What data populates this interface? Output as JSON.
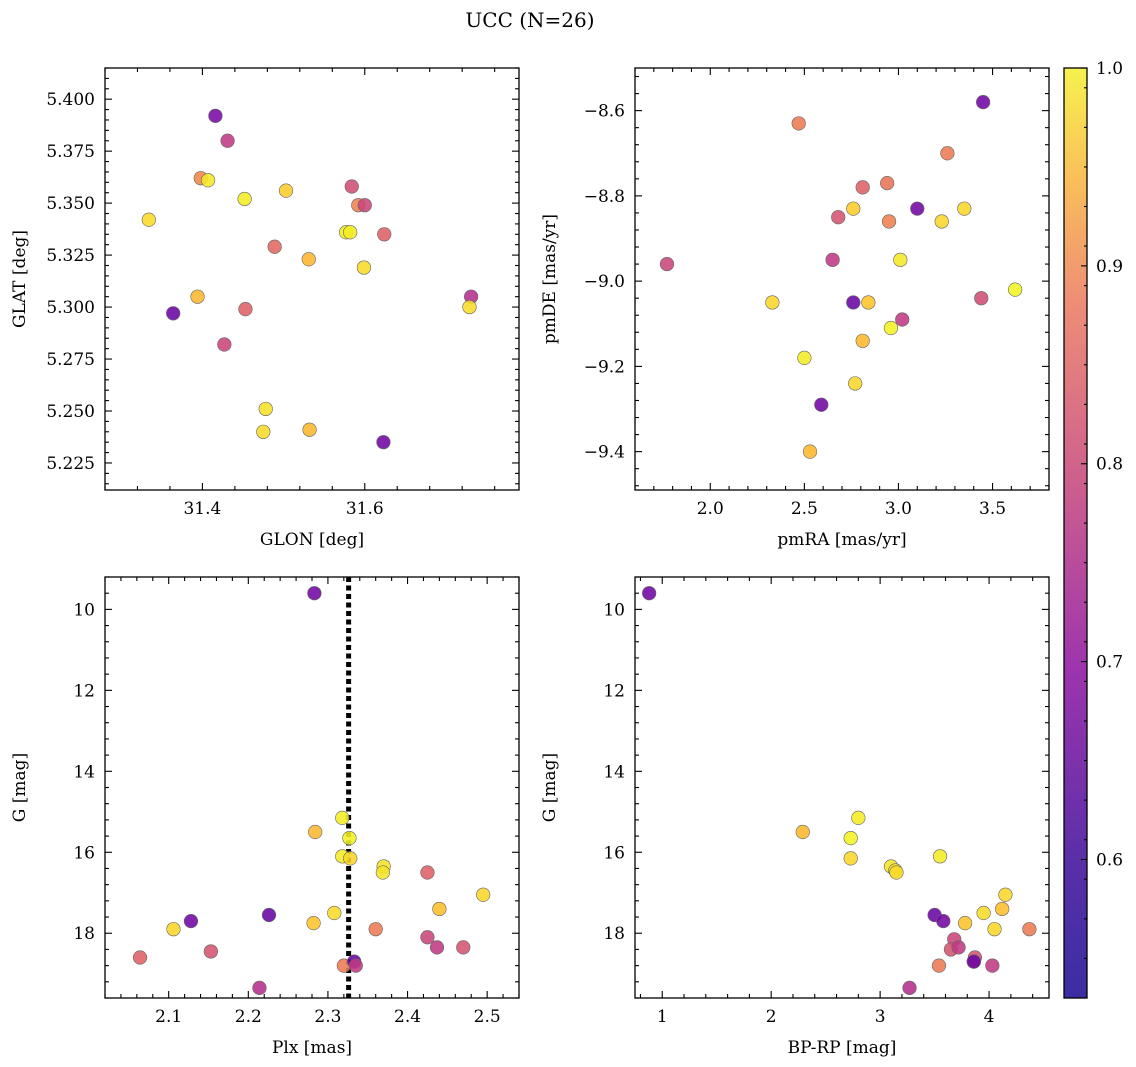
{
  "title": "UCC (N=26)",
  "chart_data": [
    {
      "type": "scatter",
      "id": "pos",
      "xlabel": "GLON [deg]",
      "ylabel": "GLAT [deg]",
      "xlim": [
        31.28,
        31.79
      ],
      "ylim": [
        5.212,
        5.415
      ],
      "xticks": [
        31.4,
        31.6
      ],
      "xtick_labels": [
        "31.4",
        "31.6"
      ],
      "yticks": [
        5.225,
        5.25,
        5.275,
        5.3,
        5.325,
        5.35,
        5.375,
        5.4
      ],
      "ytick_labels": [
        "5.225",
        "5.250",
        "5.275",
        "5.300",
        "5.325",
        "5.350",
        "5.375",
        "5.400"
      ],
      "x": [
        31.416,
        31.431,
        31.398,
        31.407,
        31.334,
        31.452,
        31.503,
        31.584,
        31.577,
        31.592,
        31.6,
        31.582,
        31.624,
        31.489,
        31.531,
        31.599,
        31.731,
        31.729,
        31.394,
        31.453,
        31.364,
        31.427,
        31.478,
        31.475,
        31.532,
        31.623
      ],
      "y": [
        5.392,
        5.38,
        5.362,
        5.361,
        5.342,
        5.352,
        5.356,
        5.358,
        5.336,
        5.349,
        5.349,
        5.336,
        5.335,
        5.329,
        5.323,
        5.319,
        5.305,
        5.3,
        5.305,
        5.299,
        5.297,
        5.282,
        5.251,
        5.24,
        5.241,
        5.235
      ],
      "prob": [
        0.58,
        0.68,
        0.8,
        0.96,
        0.93,
        0.97,
        0.9,
        0.71,
        0.97,
        0.79,
        0.7,
        0.97,
        0.74,
        0.75,
        0.86,
        0.93,
        0.66,
        0.93,
        0.86,
        0.74,
        0.56,
        0.7,
        0.94,
        0.93,
        0.86,
        0.57
      ]
    },
    {
      "type": "scatter",
      "id": "pm",
      "xlabel": "pmRA [mas/yr]",
      "ylabel": "pmDE [mas/yr]",
      "xlim": [
        1.6,
        3.8
      ],
      "ylim": [
        -9.49,
        -8.5
      ],
      "xticks": [
        2.0,
        2.5,
        3.0,
        3.5
      ],
      "xtick_labels": [
        "2.0",
        "2.5",
        "3.0",
        "3.5"
      ],
      "yticks": [
        -9.4,
        -9.2,
        -9.0,
        -8.8,
        -8.6
      ],
      "ytick_labels": [
        "−9.4",
        "−9.2",
        "−9.0",
        "−8.8",
        "−8.6"
      ],
      "x": [
        3.45,
        2.47,
        3.26,
        2.94,
        2.81,
        3.35,
        2.76,
        2.68,
        3.1,
        2.95,
        3.23,
        1.77,
        2.65,
        3.01,
        3.62,
        2.33,
        2.76,
        2.84,
        3.44,
        3.02,
        2.96,
        2.81,
        2.5,
        2.77,
        2.59,
        2.53
      ],
      "y": [
        -8.58,
        -8.63,
        -8.7,
        -8.77,
        -8.78,
        -8.83,
        -8.83,
        -8.85,
        -8.83,
        -8.86,
        -8.86,
        -8.96,
        -8.95,
        -8.95,
        -9.02,
        -9.05,
        -9.05,
        -9.05,
        -9.04,
        -9.09,
        -9.11,
        -9.14,
        -9.18,
        -9.24,
        -9.29,
        -9.4
      ],
      "prob": [
        0.57,
        0.78,
        0.78,
        0.77,
        0.74,
        0.92,
        0.9,
        0.72,
        0.57,
        0.79,
        0.92,
        0.7,
        0.68,
        0.96,
        0.99,
        0.92,
        0.56,
        0.88,
        0.71,
        0.68,
        0.98,
        0.86,
        0.97,
        0.92,
        0.57,
        0.86
      ]
    },
    {
      "type": "scatter",
      "id": "plx",
      "xlabel": "Plx [mas]",
      "ylabel": "G [mag]",
      "xlim": [
        2.02,
        2.54
      ],
      "ylim": [
        19.6,
        9.2
      ],
      "xticks": [
        2.1,
        2.2,
        2.3,
        2.4,
        2.5
      ],
      "xtick_labels": [
        "2.1",
        "2.2",
        "2.3",
        "2.4",
        "2.5"
      ],
      "yticks": [
        10,
        12,
        14,
        16,
        18
      ],
      "ytick_labels": [
        "10",
        "12",
        "14",
        "16",
        "18"
      ],
      "vline": 2.326,
      "x": [
        2.283,
        2.284,
        2.318,
        2.327,
        2.318,
        2.328,
        2.37,
        2.369,
        2.425,
        2.44,
        2.495,
        2.308,
        2.282,
        2.226,
        2.128,
        2.106,
        2.153,
        2.36,
        2.425,
        2.437,
        2.47,
        2.064,
        2.32,
        2.333,
        2.335,
        2.214
      ],
      "y": [
        9.6,
        15.5,
        15.15,
        15.65,
        16.1,
        16.15,
        16.35,
        16.5,
        16.5,
        17.4,
        17.05,
        17.5,
        17.75,
        17.55,
        17.7,
        17.9,
        18.45,
        17.9,
        18.1,
        18.35,
        18.35,
        18.6,
        18.8,
        18.7,
        18.8,
        19.35
      ],
      "prob": [
        0.57,
        0.86,
        0.97,
        0.98,
        0.97,
        0.92,
        0.95,
        0.95,
        0.74,
        0.87,
        0.92,
        0.93,
        0.88,
        0.56,
        0.57,
        0.92,
        0.72,
        0.78,
        0.7,
        0.68,
        0.72,
        0.74,
        0.78,
        0.56,
        0.68,
        0.66
      ]
    },
    {
      "type": "scatter",
      "id": "cmd",
      "xlabel": "BP-RP [mag]",
      "ylabel": "G [mag]",
      "xlim": [
        0.75,
        4.55
      ],
      "ylim": [
        19.6,
        9.2
      ],
      "xticks": [
        1,
        2,
        3,
        4
      ],
      "xtick_labels": [
        "1",
        "2",
        "3",
        "4"
      ],
      "yticks": [
        10,
        12,
        14,
        16,
        18
      ],
      "ytick_labels": [
        "10",
        "12",
        "14",
        "16",
        "18"
      ],
      "x": [
        0.88,
        2.29,
        2.8,
        2.73,
        2.73,
        3.55,
        3.1,
        3.14,
        3.15,
        4.15,
        4.12,
        3.95,
        3.5,
        3.58,
        3.78,
        4.05,
        4.37,
        3.68,
        3.65,
        3.72,
        3.87,
        3.54,
        3.86,
        4.03,
        3.27,
        3.86
      ],
      "y": [
        9.6,
        15.5,
        15.15,
        15.65,
        16.15,
        16.1,
        16.35,
        16.45,
        16.5,
        17.05,
        17.4,
        17.5,
        17.55,
        17.7,
        17.75,
        17.9,
        17.9,
        18.15,
        18.4,
        18.35,
        18.6,
        18.8,
        18.7,
        18.8,
        19.35,
        18.7
      ],
      "prob": [
        0.57,
        0.86,
        0.97,
        0.98,
        0.92,
        0.97,
        0.95,
        0.95,
        0.93,
        0.92,
        0.87,
        0.93,
        0.56,
        0.57,
        0.88,
        0.92,
        0.78,
        0.7,
        0.72,
        0.68,
        0.72,
        0.78,
        0.74,
        0.68,
        0.66,
        0.56
      ]
    }
  ],
  "colorbar": {
    "vmin": 0.53,
    "vmax": 1.0,
    "ticks": [
      0.6,
      0.7,
      0.8,
      0.9,
      1.0
    ],
    "tick_labels": [
      "0.6",
      "0.7",
      "0.8",
      "0.9",
      "1.0"
    ]
  }
}
